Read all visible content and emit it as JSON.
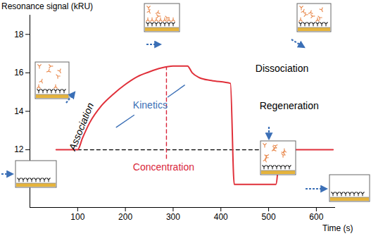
{
  "chart_data": {
    "type": "line",
    "x_label": "Time (s)",
    "y_label": "Resonance signal (kRU)",
    "x": [
      55,
      100,
      110,
      125,
      150,
      175,
      200,
      225,
      250,
      275,
      300,
      330,
      340,
      355,
      380,
      420,
      428,
      515,
      525,
      635
    ],
    "series": [
      {
        "color": "#e0303a",
        "line_style": "solid",
        "values": [
          12,
          12,
          12.6,
          13.4,
          14.3,
          14.9,
          15.4,
          15.8,
          16.05,
          16.25,
          16.35,
          16.35,
          16.0,
          15.75,
          15.6,
          15.45,
          10.2,
          10.2,
          12,
          12
        ]
      },
      {
        "color": "#000000",
        "line_style": "dashed",
        "values": [
          null,
          12,
          12,
          12,
          12,
          12,
          12,
          12,
          12,
          12,
          12,
          12,
          12,
          12,
          12,
          12,
          12,
          12,
          12,
          null
        ]
      }
    ],
    "xlim": [
      0,
      640
    ],
    "ylim": [
      9,
      19
    ],
    "xticks": [
      100,
      200,
      300,
      400,
      500,
      600
    ],
    "yticks": [
      12,
      14,
      16,
      18
    ],
    "grid": false,
    "annotations": [
      {
        "text": "Association",
        "x": 108,
        "y": 13.2,
        "color": "#000000"
      },
      {
        "text": "Kinetics",
        "x": 252,
        "y": 14.3,
        "color": "#3b6fb6"
      },
      {
        "text": "Concentration",
        "x": 280,
        "y": 11.08,
        "color": "#d9263b"
      },
      {
        "text": "Dissociation",
        "x": 528,
        "y": 16.2,
        "color": "#000000"
      },
      {
        "text": "Regeneration",
        "x": 543,
        "y": 14.26,
        "color": "#000000"
      }
    ],
    "guides": [
      {
        "x": [
          286,
          286
        ],
        "y": [
          11.55,
          16.3
        ],
        "color": "#d9263b",
        "line_style": "dashed"
      },
      {
        "x": [
          181,
          218
        ],
        "y": [
          13.17,
          13.8
        ],
        "color": "#3b6fb6",
        "line_style": "solid"
      },
      {
        "x": [
          289,
          324
        ],
        "y": [
          14.74,
          15.36
        ],
        "color": "#3b6fb6",
        "line_style": "solid"
      }
    ]
  }
}
